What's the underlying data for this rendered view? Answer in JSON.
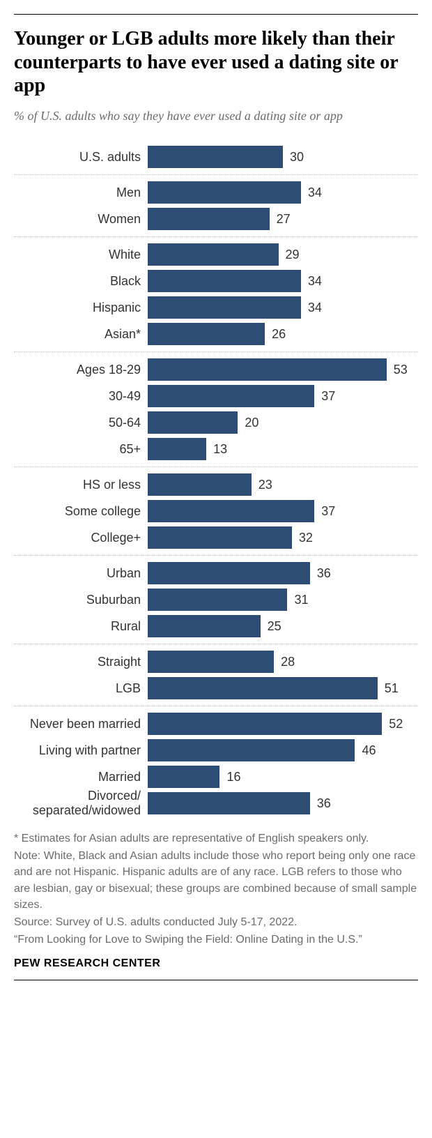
{
  "title": "Younger or LGB adults more likely than their counterparts to have ever used a dating site or app",
  "subtitle": "% of U.S. adults who say they have ever used a dating site or app",
  "chart": {
    "type": "bar",
    "bar_color": "#2d4d74",
    "background_color": "#ffffff",
    "divider_color": "#c4c4c4",
    "label_fontsize": 18,
    "value_fontsize": 18,
    "title_fontsize": 28,
    "subtitle_fontsize": 18,
    "max_value": 60,
    "label_color": "#333333",
    "value_color": "#333333",
    "groups": [
      {
        "rows": [
          {
            "label": "U.S. adults",
            "value": 30
          }
        ]
      },
      {
        "rows": [
          {
            "label": "Men",
            "value": 34
          },
          {
            "label": "Women",
            "value": 27
          }
        ]
      },
      {
        "rows": [
          {
            "label": "White",
            "value": 29
          },
          {
            "label": "Black",
            "value": 34
          },
          {
            "label": "Hispanic",
            "value": 34
          },
          {
            "label": "Asian*",
            "value": 26
          }
        ]
      },
      {
        "rows": [
          {
            "label": "Ages 18-29",
            "value": 53
          },
          {
            "label": "30-49",
            "value": 37
          },
          {
            "label": "50-64",
            "value": 20
          },
          {
            "label": "65+",
            "value": 13
          }
        ]
      },
      {
        "rows": [
          {
            "label": "HS or less",
            "value": 23
          },
          {
            "label": "Some college",
            "value": 37
          },
          {
            "label": "College+",
            "value": 32
          }
        ]
      },
      {
        "rows": [
          {
            "label": "Urban",
            "value": 36
          },
          {
            "label": "Suburban",
            "value": 31
          },
          {
            "label": "Rural",
            "value": 25
          }
        ]
      },
      {
        "rows": [
          {
            "label": "Straight",
            "value": 28
          },
          {
            "label": "LGB",
            "value": 51
          }
        ]
      },
      {
        "rows": [
          {
            "label": "Never been married",
            "value": 52
          },
          {
            "label": "Living with partner",
            "value": 46
          },
          {
            "label": "Married",
            "value": 16
          },
          {
            "label": "Divorced/ separated/widowed",
            "value": 36
          }
        ]
      }
    ]
  },
  "footnotes": {
    "fontsize": 16,
    "color": "#6b6b6b",
    "lines": [
      "* Estimates for Asian adults are representative of English speakers only.",
      "Note: White, Black and Asian adults include those who report being only one race and are not Hispanic. Hispanic adults are of any race. LGB refers to those who are lesbian, gay or bisexual; these groups are combined because of small sample sizes.",
      "Source: Survey of U.S. adults conducted July 5-17, 2022.",
      "“From Looking for Love to Swiping the Field: Online Dating in the U.S.”"
    ]
  },
  "source_name": "PEW RESEARCH CENTER",
  "source_fontsize": 16
}
